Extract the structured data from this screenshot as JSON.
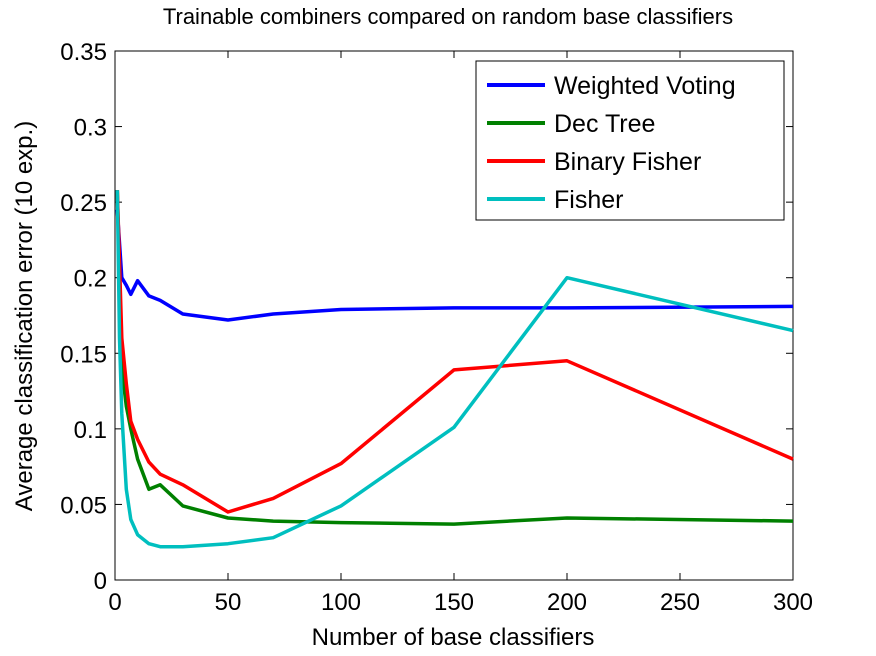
{
  "chart_data": {
    "type": "line",
    "title": "Trainable combiners compared on random base classifiers",
    "xlabel": "Number of base classifiers",
    "ylabel": "Average classification error (10 exp.)",
    "xlim": [
      0,
      300
    ],
    "ylim": [
      0,
      0.35
    ],
    "xticks": [
      0,
      50,
      100,
      150,
      200,
      250,
      300
    ],
    "xtick_labels": [
      "0",
      "50",
      "100",
      "150",
      "200",
      "250",
      "300"
    ],
    "yticks": [
      0,
      0.05,
      0.1,
      0.15,
      0.2,
      0.25,
      0.3,
      0.35
    ],
    "ytick_labels": [
      "0",
      "0.05",
      "0.1",
      "0.15",
      "0.2",
      "0.25",
      "0.3",
      "0.35"
    ],
    "grid": false,
    "legend_position": "top-right",
    "series": [
      {
        "name": "Weighted Voting",
        "color": "#0000ff",
        "x": [
          1,
          3,
          5,
          7,
          10,
          15,
          20,
          30,
          50,
          70,
          100,
          150,
          200,
          300
        ],
        "y": [
          0.245,
          0.2,
          0.195,
          0.189,
          0.198,
          0.188,
          0.185,
          0.176,
          0.172,
          0.176,
          0.179,
          0.18,
          0.18,
          0.181
        ]
      },
      {
        "name": "Dec Tree",
        "color": "#008000",
        "x": [
          1,
          3,
          5,
          7,
          10,
          15,
          20,
          30,
          50,
          70,
          100,
          150,
          200,
          300
        ],
        "y": [
          0.258,
          0.14,
          0.115,
          0.1,
          0.08,
          0.06,
          0.063,
          0.049,
          0.041,
          0.039,
          0.038,
          0.037,
          0.041,
          0.039
        ]
      },
      {
        "name": "Binary Fisher",
        "color": "#ff0000",
        "x": [
          1,
          3,
          5,
          7,
          10,
          15,
          20,
          30,
          50,
          70,
          100,
          150,
          200,
          300
        ],
        "y": [
          0.258,
          0.16,
          0.13,
          0.105,
          0.093,
          0.078,
          0.07,
          0.063,
          0.045,
          0.054,
          0.077,
          0.139,
          0.145,
          0.08
        ]
      },
      {
        "name": "Fisher",
        "color": "#00bfbf",
        "x": [
          1,
          2,
          3,
          5,
          7,
          10,
          15,
          20,
          30,
          50,
          70,
          100,
          150,
          200,
          300
        ],
        "y": [
          0.258,
          0.16,
          0.11,
          0.06,
          0.04,
          0.03,
          0.024,
          0.022,
          0.022,
          0.024,
          0.028,
          0.049,
          0.101,
          0.2,
          0.165
        ]
      }
    ]
  }
}
